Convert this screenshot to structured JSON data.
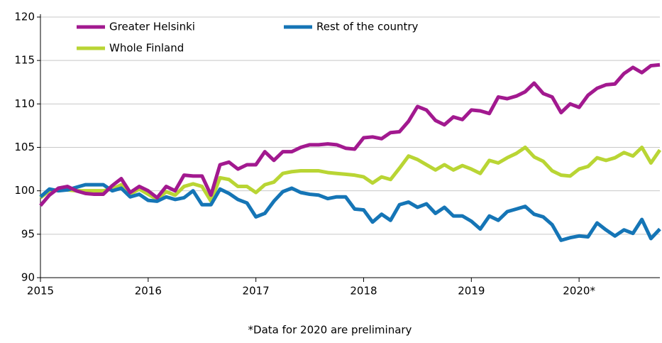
{
  "chart_data": {
    "type": "line",
    "footnote": "*Data for 2020 are preliminary",
    "x": [
      2015,
      2015.083,
      2015.167,
      2015.25,
      2015.333,
      2015.417,
      2015.5,
      2015.583,
      2015.667,
      2015.75,
      2015.833,
      2015.917,
      2016,
      2016.083,
      2016.167,
      2016.25,
      2016.333,
      2016.417,
      2016.5,
      2016.583,
      2016.667,
      2016.75,
      2016.833,
      2016.917,
      2017,
      2017.083,
      2017.167,
      2017.25,
      2017.333,
      2017.417,
      2017.5,
      2017.583,
      2017.667,
      2017.75,
      2017.833,
      2017.917,
      2018,
      2018.083,
      2018.167,
      2018.25,
      2018.333,
      2018.417,
      2018.5,
      2018.583,
      2018.667,
      2018.75,
      2018.833,
      2018.917,
      2019,
      2019.083,
      2019.167,
      2019.25,
      2019.333,
      2019.417,
      2019.5,
      2019.583,
      2019.667,
      2019.75,
      2019.833,
      2019.917,
      2020,
      2020.083,
      2020.167,
      2020.25,
      2020.333,
      2020.417,
      2020.5,
      2020.583,
      2020.667,
      2020.75
    ],
    "series": [
      {
        "name": "Greater Helsinki",
        "color": "#a2198f",
        "values": [
          98.3,
          99.5,
          100.3,
          100.5,
          100,
          99.7,
          99.6,
          99.6,
          100.6,
          101.4,
          99.8,
          100.5,
          100,
          99.2,
          100.5,
          100,
          101.8,
          101.7,
          101.7,
          99.5,
          103,
          103.3,
          102.5,
          103,
          103,
          104.5,
          103.5,
          104.5,
          104.5,
          105,
          105.3,
          105.3,
          105.4,
          105.3,
          104.9,
          104.8,
          106.1,
          106.2,
          106,
          106.7,
          106.8,
          108,
          109.7,
          109.3,
          108.1,
          107.6,
          108.5,
          108.2,
          109.3,
          109.2,
          108.9,
          110.8,
          110.6,
          110.9,
          111.4,
          112.4,
          111.2,
          110.8,
          109,
          110,
          109.6,
          111,
          111.8,
          112.2,
          112.3,
          113.5,
          114.2,
          113.6,
          114.4,
          114.5
        ]
      },
      {
        "name": "Rest of the country",
        "color": "#1575b6",
        "values": [
          99.3,
          100.2,
          100,
          100.1,
          100.4,
          100.7,
          100.7,
          100.7,
          100,
          100.3,
          99.3,
          99.6,
          98.9,
          98.8,
          99.3,
          99,
          99.2,
          100,
          98.4,
          98.4,
          100.2,
          99.7,
          99,
          98.6,
          97,
          97.4,
          98.8,
          99.9,
          100.3,
          99.8,
          99.6,
          99.5,
          99.1,
          99.3,
          99.3,
          97.9,
          97.8,
          96.4,
          97.3,
          96.6,
          98.4,
          98.7,
          98.1,
          98.5,
          97.4,
          98.1,
          97.1,
          97.1,
          96.5,
          95.6,
          97.1,
          96.6,
          97.6,
          97.9,
          98.2,
          97.3,
          97,
          96.1,
          94.3,
          94.6,
          94.8,
          94.7,
          96.3,
          95.5,
          94.8,
          95.5,
          95.1,
          96.7,
          94.5,
          95.6
        ]
      },
      {
        "name": "Whole Finland",
        "color": "#b9d534",
        "values": [
          99.2,
          100,
          100.1,
          100.1,
          100,
          100,
          100,
          100,
          100.2,
          100.7,
          99.6,
          100.2,
          99.6,
          99,
          99.9,
          99.5,
          100.5,
          100.8,
          100.5,
          98.8,
          101.5,
          101.3,
          100.5,
          100.5,
          99.8,
          100.7,
          101,
          102,
          102.2,
          102.3,
          102.3,
          102.3,
          102.1,
          102,
          101.9,
          101.8,
          101.6,
          100.9,
          101.6,
          101.3,
          102.6,
          104,
          103.6,
          103,
          102.4,
          103,
          102.4,
          102.9,
          102.5,
          102,
          103.5,
          103.2,
          103.8,
          104.3,
          105,
          103.9,
          103.4,
          102.3,
          101.8,
          101.7,
          102.5,
          102.8,
          103.8,
          103.5,
          103.8,
          104.4,
          104,
          105,
          103.2,
          104.7
        ]
      }
    ],
    "xlim": [
      2015,
      2020.75
    ],
    "xticks": [
      2015,
      2016,
      2017,
      2018,
      2019,
      {
        "value": 2020,
        "label": "2020*"
      }
    ],
    "ylim": [
      90,
      120
    ],
    "yticks": [
      90,
      95,
      100,
      105,
      110,
      115,
      120
    ],
    "grid": true,
    "legend": "upper-left"
  }
}
